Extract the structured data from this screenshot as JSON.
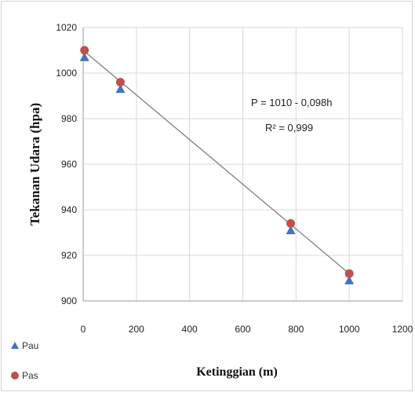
{
  "chart_data": {
    "type": "scatter",
    "xlabel": "Ketinggian (m)",
    "ylabel": "Tekanan Udara (hpa)",
    "xlim": [
      0,
      1200
    ],
    "ylim": [
      900,
      1020
    ],
    "x_ticks": [
      0,
      200,
      400,
      600,
      800,
      1000,
      1200
    ],
    "y_ticks": [
      900,
      920,
      940,
      960,
      980,
      1000,
      1020
    ],
    "grid": true,
    "legend_position": "bottom-left",
    "series": [
      {
        "name": "Pau",
        "marker": "triangle",
        "color": "#4472c4",
        "points": [
          {
            "x": 5,
            "y": 1007
          },
          {
            "x": 140,
            "y": 993
          },
          {
            "x": 780,
            "y": 931
          },
          {
            "x": 1000,
            "y": 909
          }
        ]
      },
      {
        "name": "Pas",
        "marker": "circle",
        "color": "#c0504d",
        "points": [
          {
            "x": 5,
            "y": 1010
          },
          {
            "x": 140,
            "y": 996
          },
          {
            "x": 780,
            "y": 934
          },
          {
            "x": 1000,
            "y": 912
          }
        ]
      }
    ],
    "trendline": {
      "x_range": [
        0,
        1000
      ],
      "intercept": 1010,
      "slope": -0.098,
      "color": "#7f7f7f"
    },
    "annotations": {
      "equation": "P = 1010 - 0,098h",
      "r_squared": "R² = 0,999"
    }
  }
}
